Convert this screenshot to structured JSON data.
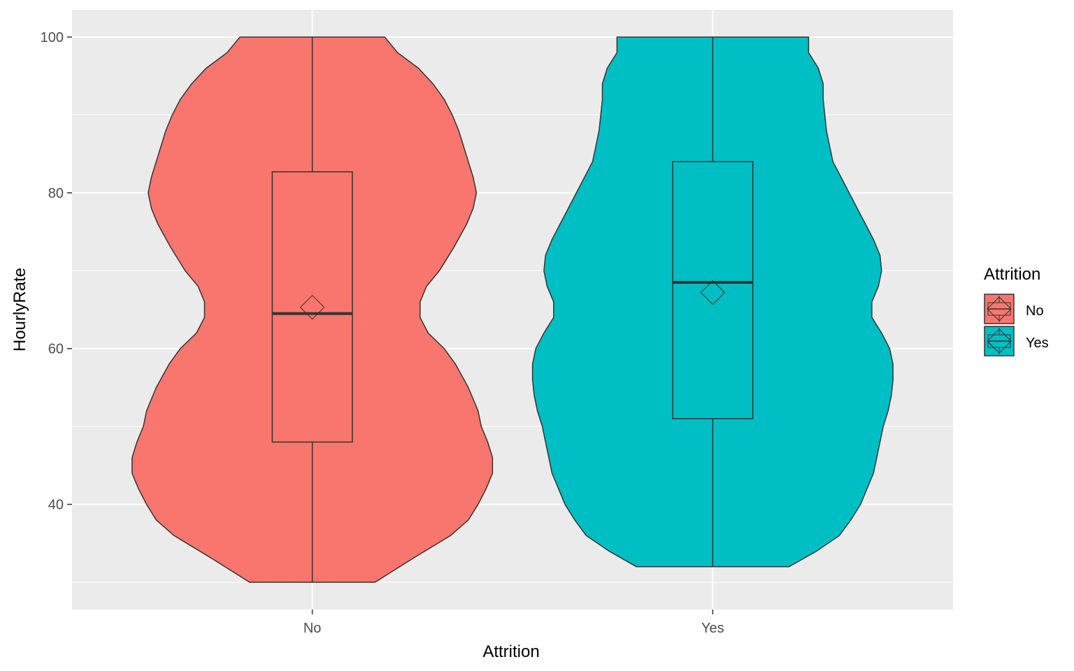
{
  "chart_data": {
    "type": "violin",
    "xlabel": "Attrition",
    "ylabel": "HourlyRate",
    "ylim": [
      26.5,
      103.5
    ],
    "yticks": [
      40,
      60,
      80,
      100
    ],
    "ytick_labels": [
      "40",
      "60",
      "80",
      "100"
    ],
    "categories": [
      "No",
      "Yes"
    ],
    "grid": true,
    "legend": {
      "title": "Attrition",
      "position": "right",
      "entries": [
        "No",
        "Yes"
      ]
    },
    "colors": {
      "No": "#F8766D",
      "Yes": "#00BFC4",
      "panel": "#EBEBEB",
      "outline": "#333333"
    },
    "series": [
      {
        "name": "No",
        "min": 30,
        "q1": 48,
        "median": 64.5,
        "q3": 82.7,
        "max": 100,
        "mean": 65.3,
        "density": [
          [
            30,
            0.39
          ],
          [
            33,
            0.62
          ],
          [
            36,
            0.86
          ],
          [
            38,
            0.97
          ],
          [
            40,
            1.03
          ],
          [
            42,
            1.08
          ],
          [
            44,
            1.12
          ],
          [
            46,
            1.12
          ],
          [
            48,
            1.09
          ],
          [
            50,
            1.05
          ],
          [
            52,
            1.03
          ],
          [
            55,
            0.97
          ],
          [
            58,
            0.89
          ],
          [
            60,
            0.82
          ],
          [
            62,
            0.72
          ],
          [
            64,
            0.67
          ],
          [
            66,
            0.67
          ],
          [
            68,
            0.71
          ],
          [
            70,
            0.79
          ],
          [
            73,
            0.88
          ],
          [
            76,
            0.96
          ],
          [
            78,
            1.0
          ],
          [
            80,
            1.02
          ],
          [
            82,
            1.0
          ],
          [
            84,
            0.97
          ],
          [
            86,
            0.94
          ],
          [
            88,
            0.91
          ],
          [
            90,
            0.87
          ],
          [
            92,
            0.82
          ],
          [
            94,
            0.75
          ],
          [
            96,
            0.66
          ],
          [
            98,
            0.53
          ],
          [
            100,
            0.45
          ]
        ]
      },
      {
        "name": "Yes",
        "min": 32,
        "q1": 51,
        "median": 68.5,
        "q3": 84,
        "max": 100,
        "mean": 67.2,
        "density": [
          [
            32,
            0.47
          ],
          [
            34,
            0.64
          ],
          [
            36,
            0.78
          ],
          [
            38,
            0.85
          ],
          [
            40,
            0.91
          ],
          [
            42,
            0.95
          ],
          [
            44,
            0.99
          ],
          [
            46,
            1.01
          ],
          [
            48,
            1.03
          ],
          [
            50,
            1.05
          ],
          [
            52,
            1.08
          ],
          [
            54,
            1.1
          ],
          [
            56,
            1.11
          ],
          [
            58,
            1.11
          ],
          [
            60,
            1.09
          ],
          [
            62,
            1.04
          ],
          [
            64,
            0.98
          ],
          [
            66,
            0.98
          ],
          [
            68,
            1.02
          ],
          [
            70,
            1.04
          ],
          [
            72,
            1.03
          ],
          [
            74,
            0.99
          ],
          [
            76,
            0.94
          ],
          [
            78,
            0.89
          ],
          [
            80,
            0.84
          ],
          [
            82,
            0.79
          ],
          [
            84,
            0.74
          ],
          [
            86,
            0.72
          ],
          [
            88,
            0.7
          ],
          [
            90,
            0.69
          ],
          [
            92,
            0.68
          ],
          [
            94,
            0.68
          ],
          [
            96,
            0.65
          ],
          [
            98,
            0.59
          ],
          [
            100,
            0.59
          ]
        ]
      }
    ]
  }
}
